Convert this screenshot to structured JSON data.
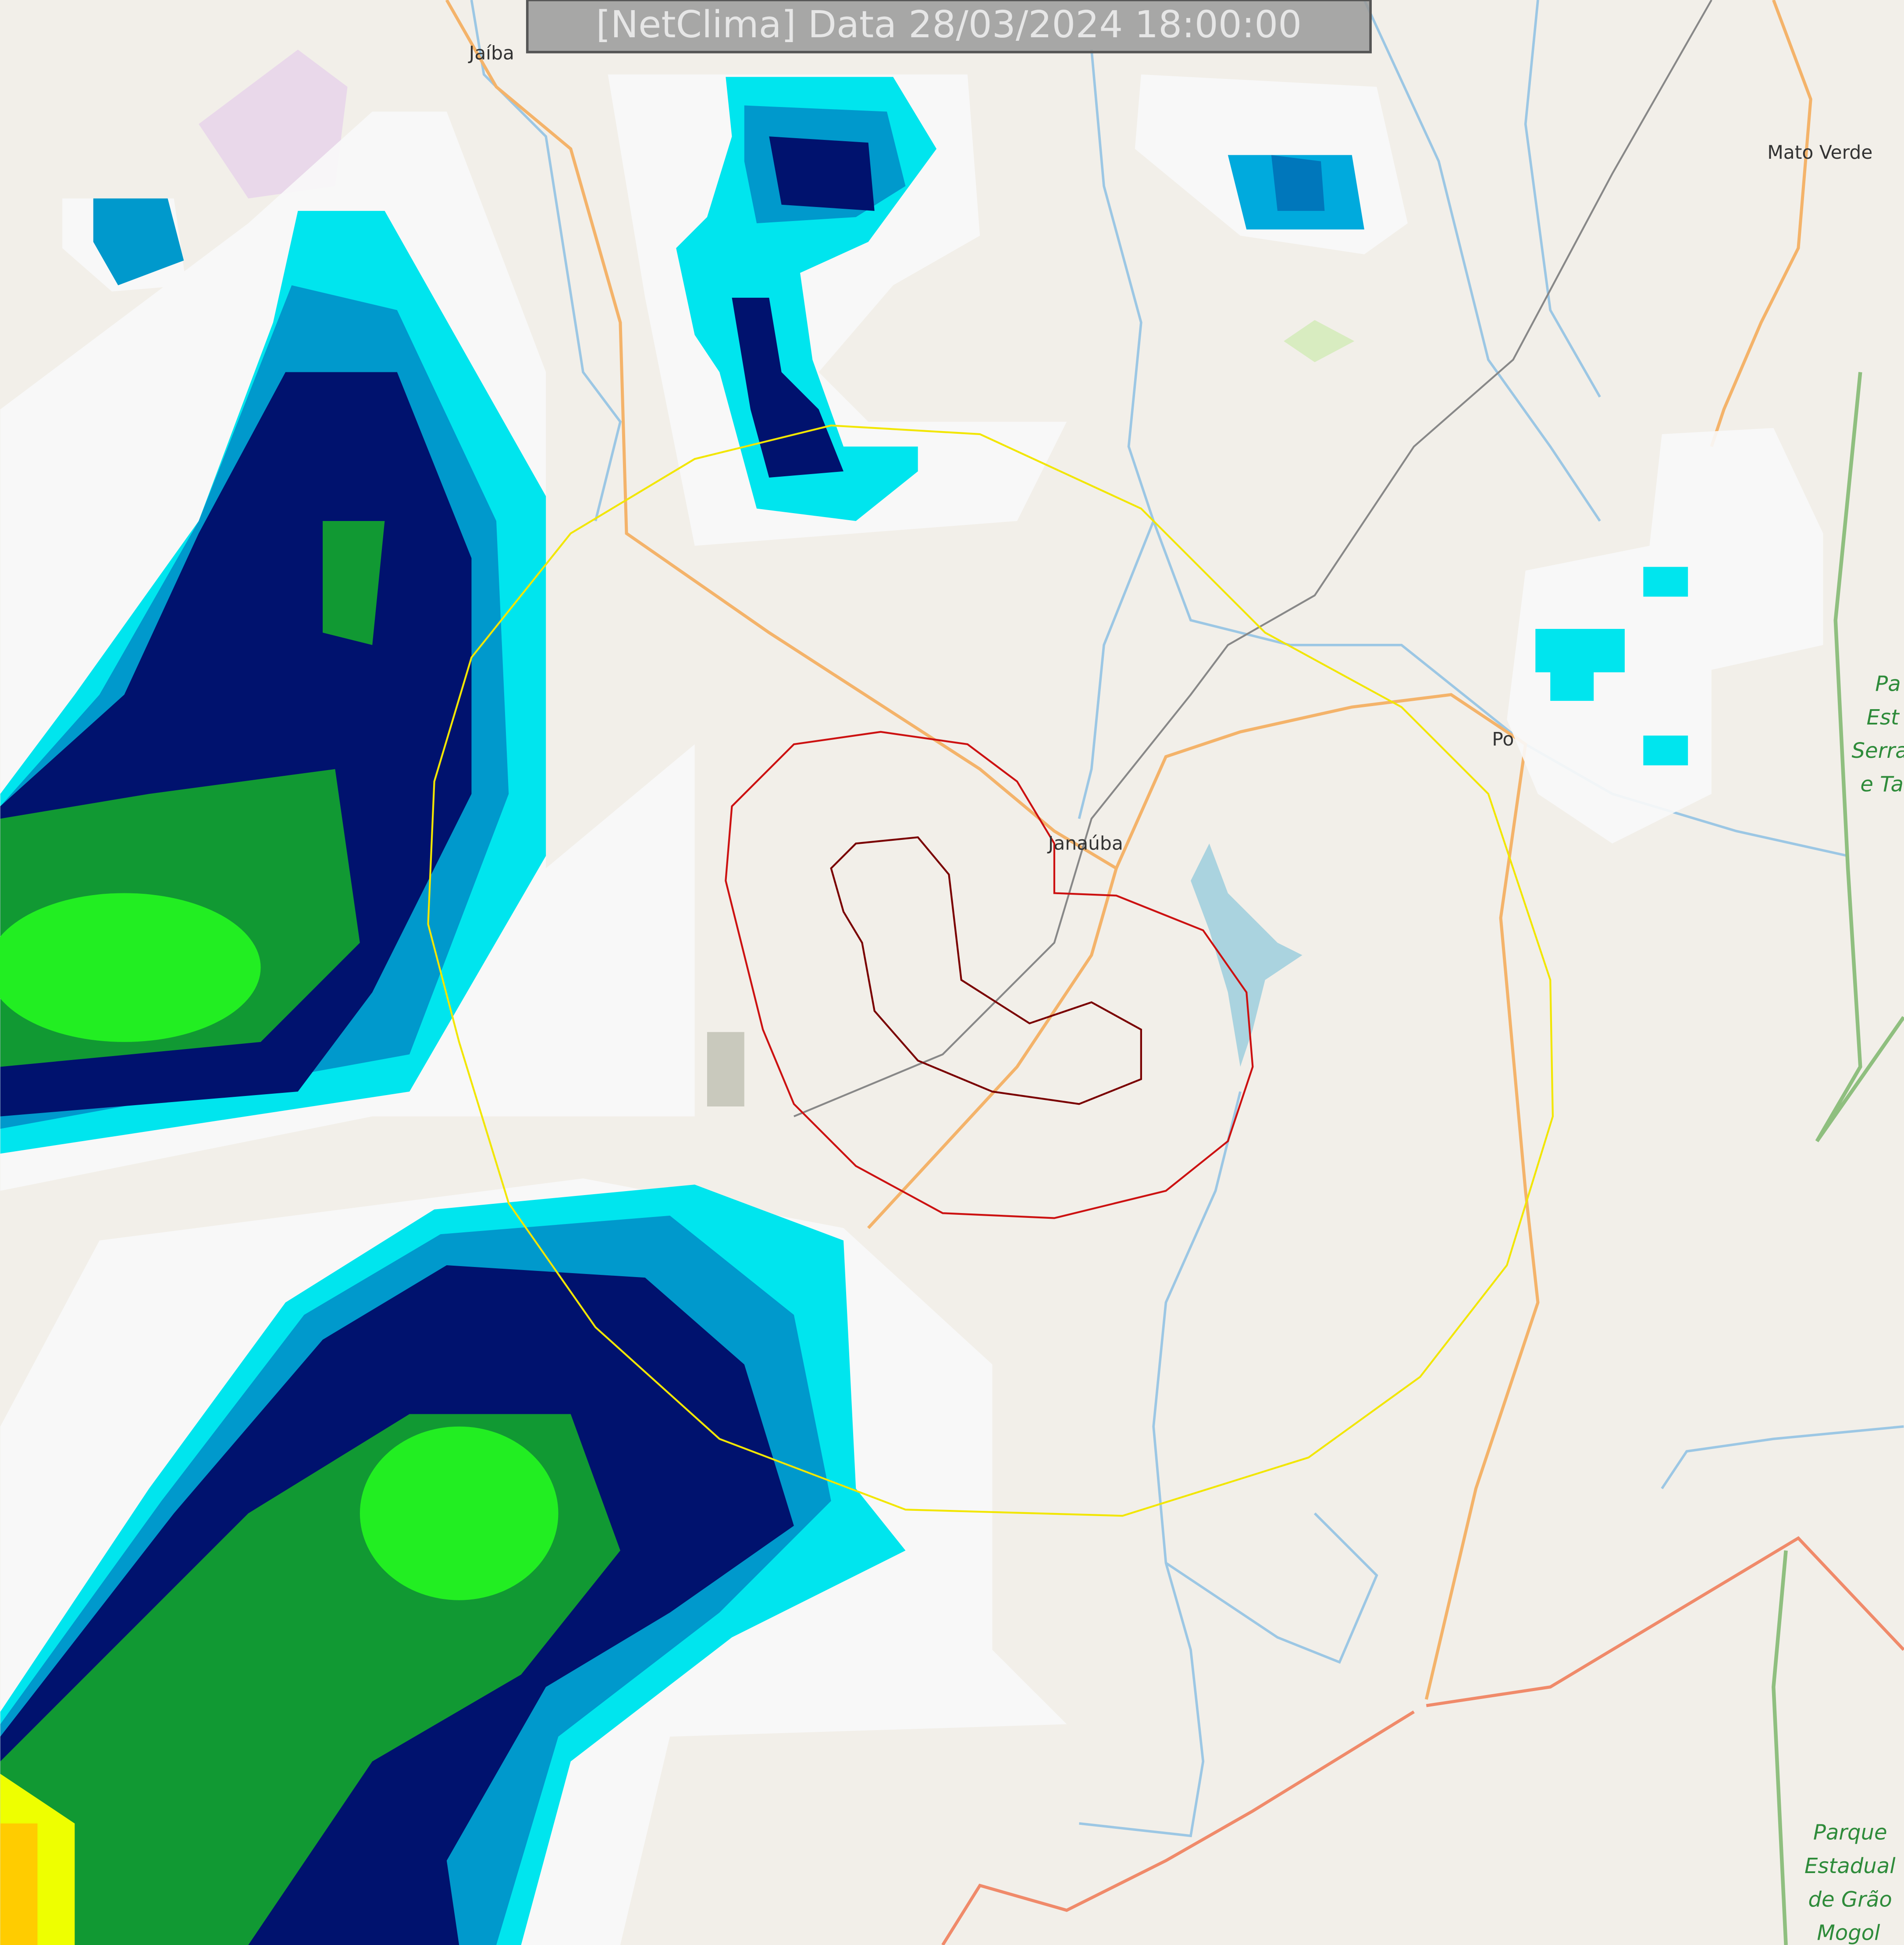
{
  "header": {
    "title": "[NetClima] Data 28/03/2024 18:00:00"
  },
  "places": [
    {
      "label": "Jaíba"
    },
    {
      "label": "Mato Verde"
    },
    {
      "label": "Janaúba"
    },
    {
      "label": "Po"
    }
  ],
  "parks": [
    {
      "lines": [
        "Pa",
        "Est",
        "Serra",
        "e Ta"
      ]
    },
    {
      "lines": [
        "Parque",
        "Estadual",
        "de Grão",
        "Mogol"
      ]
    }
  ]
}
